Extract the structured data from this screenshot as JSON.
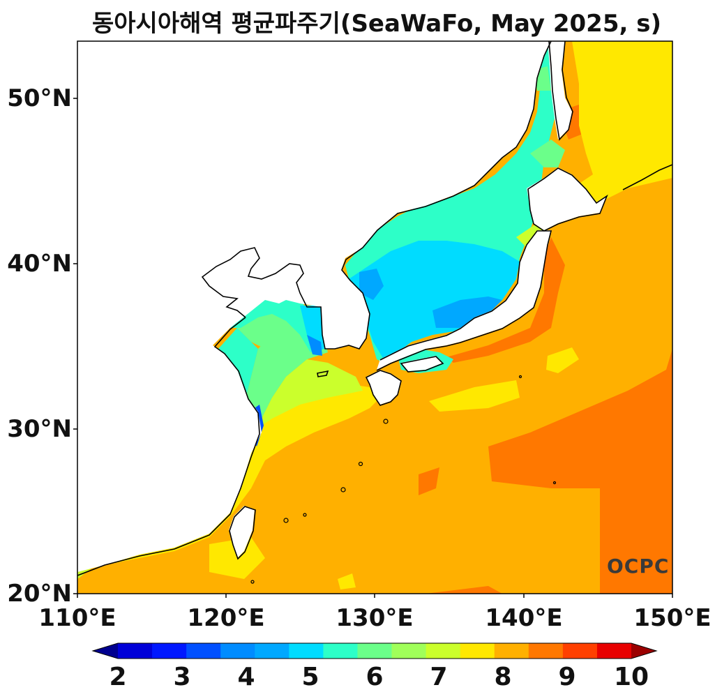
{
  "title": "동아시아해역 평균파주기(SeaWaFo, May 2025, s)",
  "map": {
    "lon_range": [
      110,
      150
    ],
    "lat_range": [
      20,
      53.5
    ],
    "lat_ticks": [
      "50°N",
      "40°N",
      "30°N",
      "20°N"
    ],
    "lon_ticks": [
      "110°E",
      "120°E",
      "130°E",
      "140°E",
      "150°E"
    ]
  },
  "colorbar": {
    "min": 2,
    "max": 10,
    "step": 0.5,
    "tick_labels": [
      "2",
      "3",
      "4",
      "5",
      "6",
      "7",
      "8",
      "9",
      "10"
    ],
    "colors": [
      "#00008f",
      "#0000d8",
      "#0018ff",
      "#0050ff",
      "#008cff",
      "#00a8ff",
      "#00dcff",
      "#2dffc8",
      "#6bff8a",
      "#a0ff5a",
      "#cbff2c",
      "#ffe800",
      "#ffb000",
      "#ff7800",
      "#ff4000",
      "#e80000",
      "#9b0000"
    ]
  },
  "logo": "OCPC"
}
